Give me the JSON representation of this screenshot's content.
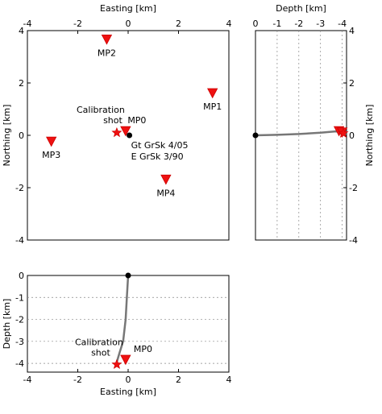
{
  "chart_data": [
    {
      "type": "scatter",
      "panel": "map",
      "xlabel": "Easting [km]",
      "ylabel": "Northing [km]",
      "xlim": [
        -4,
        4
      ],
      "ylim": [
        -4,
        4
      ],
      "xticks": [
        "-4",
        "-2",
        "0",
        "2",
        "4"
      ],
      "yticks": [
        "4",
        "2",
        "0",
        "-2",
        "-4"
      ],
      "stations": [
        {
          "name": "MP0",
          "x": -0.1,
          "y": 0.15
        },
        {
          "name": "MP1",
          "x": 3.35,
          "y": 1.6
        },
        {
          "name": "MP2",
          "x": -0.85,
          "y": 3.65
        },
        {
          "name": "MP3",
          "x": -3.05,
          "y": -0.25
        },
        {
          "name": "MP4",
          "x": 1.5,
          "y": -1.7
        }
      ],
      "calibration_shot": {
        "label": [
          "Calibration",
          "shot"
        ],
        "x": -0.45,
        "y": 0.1
      },
      "well": {
        "label": [
          "Gt GrSk 4/05",
          "E GrSk 3/90"
        ],
        "x": 0.05,
        "y": 0.0
      }
    },
    {
      "type": "line",
      "panel": "depth-northing",
      "xlabel": "Depth [km]",
      "ylabel": "Northing [km]",
      "xlim": [
        0,
        -4.2
      ],
      "ylim": [
        -4,
        4
      ],
      "xticks": [
        "0",
        "-1",
        "-2",
        "-3",
        "-4"
      ],
      "yticks": [
        "4",
        "2",
        "0",
        "-2",
        "-4"
      ],
      "well_path": [
        [
          0,
          0
        ],
        [
          -1,
          0.02
        ],
        [
          -2,
          0.05
        ],
        [
          -3,
          0.1
        ],
        [
          -3.7,
          0.15
        ],
        [
          -4.05,
          0.12
        ]
      ],
      "markers": [
        {
          "kind": "triangle",
          "x": -3.85,
          "y": 0.15
        },
        {
          "kind": "triangle",
          "x": -4.0,
          "y": 0.1
        },
        {
          "kind": "star",
          "x": -4.05,
          "y": 0.08
        }
      ]
    },
    {
      "type": "line",
      "panel": "easting-depth",
      "xlabel": "Easting [km]",
      "ylabel": "Depth [km]",
      "xlim": [
        -4,
        4
      ],
      "ylim": [
        0,
        -4.4
      ],
      "xticks": [
        "-4",
        "-2",
        "0",
        "2",
        "4"
      ],
      "yticks": [
        "0",
        "-1",
        "-2",
        "-3",
        "-4"
      ],
      "well_path": [
        [
          0.0,
          0.0
        ],
        [
          -0.05,
          -1.0
        ],
        [
          -0.1,
          -2.0
        ],
        [
          -0.2,
          -3.0
        ],
        [
          -0.35,
          -3.55
        ],
        [
          -0.45,
          -3.95
        ]
      ],
      "stations": [
        {
          "name": "MP0",
          "x": -0.1,
          "y": -3.85
        }
      ],
      "calibration_shot": {
        "label": [
          "Calibration",
          "shot"
        ],
        "x": -0.45,
        "y": -4.05
      }
    }
  ]
}
